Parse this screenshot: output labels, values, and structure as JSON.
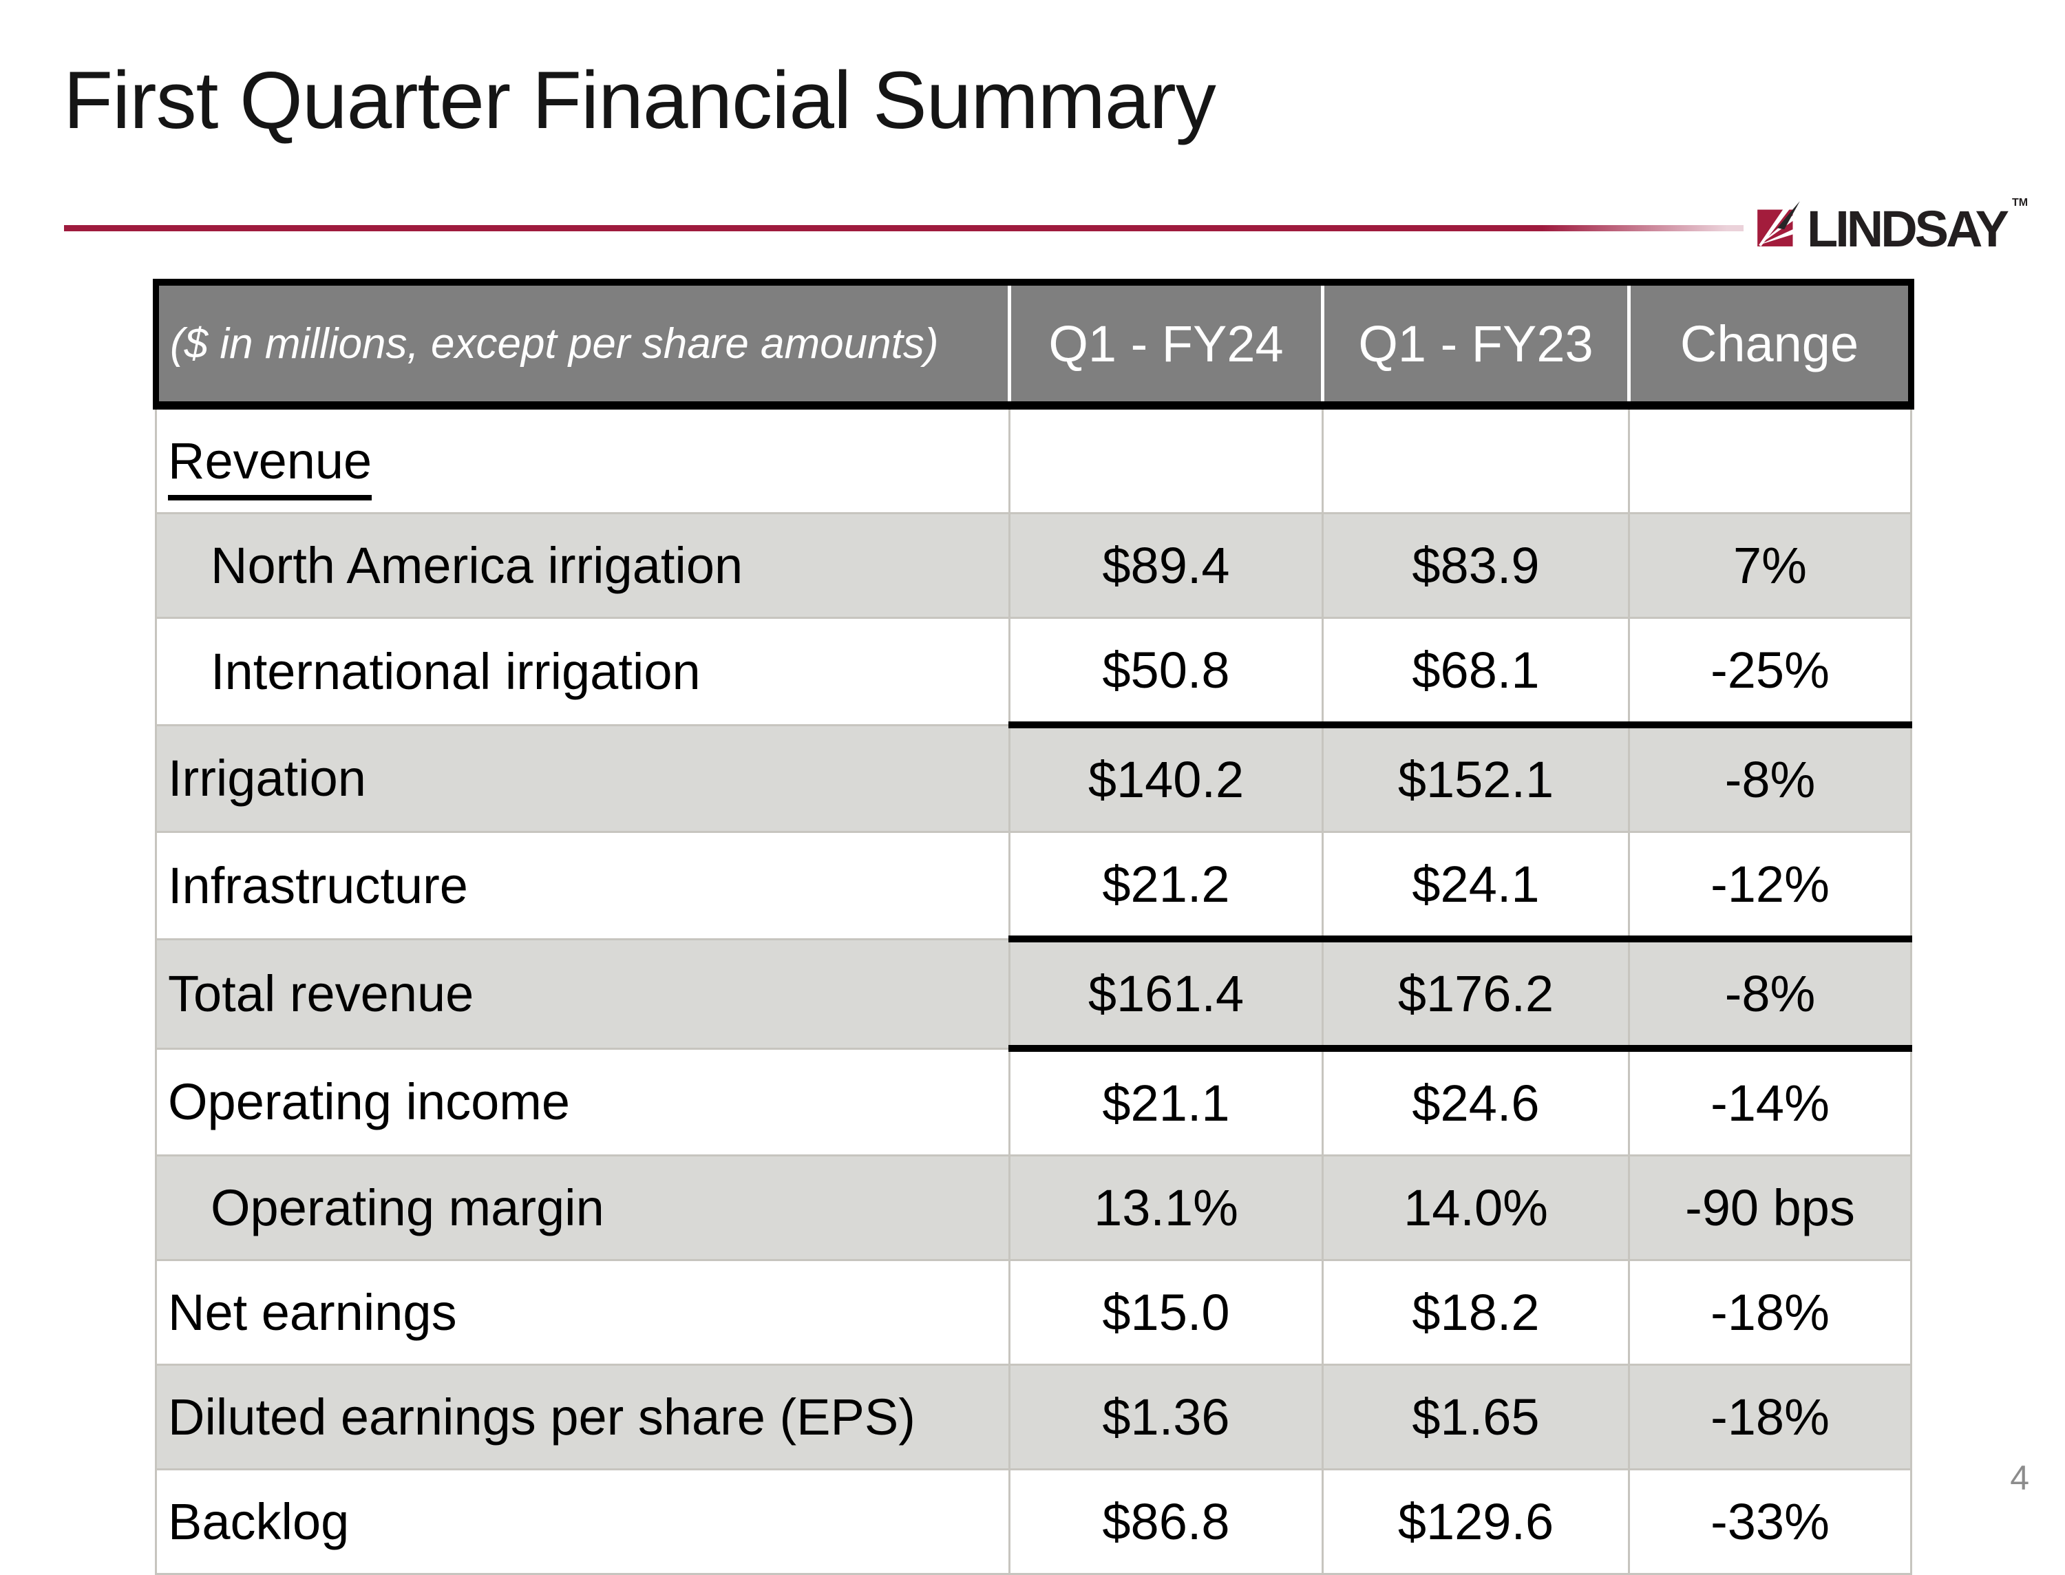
{
  "page": {
    "title": "First Quarter Financial Summary",
    "page_number": "4"
  },
  "logo": {
    "brand": "LINDSAY",
    "trademark": "TM",
    "mark_red": "#A31C3C",
    "text_color": "#231F20"
  },
  "accent_line_color": "#9E1B3E",
  "table": {
    "header": {
      "note": "($ in millions, except per share amounts)",
      "col_q1_fy24": "Q1 - FY24",
      "col_q1_fy23": "Q1 - FY23",
      "col_change": "Change",
      "bg": "#7F7F7F"
    },
    "shaded_row_bg": "#D9D9D6",
    "rows": [
      {
        "label": "Revenue",
        "q1_fy24": "",
        "q1_fy23": "",
        "change": "",
        "indent": false,
        "underline": true,
        "shaded": false,
        "section_end": false
      },
      {
        "label": "North America irrigation",
        "q1_fy24": "$89.4",
        "q1_fy23": "$83.9",
        "change": "7%",
        "indent": true,
        "underline": false,
        "shaded": true,
        "section_end": false
      },
      {
        "label": "International irrigation",
        "q1_fy24": "$50.8",
        "q1_fy23": "$68.1",
        "change": "-25%",
        "indent": true,
        "underline": false,
        "shaded": false,
        "section_end": true
      },
      {
        "label": "Irrigation",
        "q1_fy24": "$140.2",
        "q1_fy23": "$152.1",
        "change": "-8%",
        "indent": false,
        "underline": false,
        "shaded": true,
        "section_end": false
      },
      {
        "label": "Infrastructure",
        "q1_fy24": "$21.2",
        "q1_fy23": "$24.1",
        "change": "-12%",
        "indent": false,
        "underline": false,
        "shaded": false,
        "section_end": true
      },
      {
        "label": "Total revenue",
        "q1_fy24": "$161.4",
        "q1_fy23": "$176.2",
        "change": "-8%",
        "indent": false,
        "underline": false,
        "shaded": true,
        "section_end": true
      },
      {
        "label": "Operating income",
        "q1_fy24": "$21.1",
        "q1_fy23": "$24.6",
        "change": "-14%",
        "indent": false,
        "underline": false,
        "shaded": false,
        "section_end": false
      },
      {
        "label": "Operating margin",
        "q1_fy24": "13.1%",
        "q1_fy23": "14.0%",
        "change": "-90 bps",
        "indent": true,
        "underline": false,
        "shaded": true,
        "section_end": false
      },
      {
        "label": "Net earnings",
        "q1_fy24": "$15.0",
        "q1_fy23": "$18.2",
        "change": "-18%",
        "indent": false,
        "underline": false,
        "shaded": false,
        "section_end": false
      },
      {
        "label": "Diluted earnings per share (EPS)",
        "q1_fy24": "$1.36",
        "q1_fy23": "$1.65",
        "change": "-18%",
        "indent": false,
        "underline": false,
        "shaded": true,
        "section_end": false
      },
      {
        "label": "Backlog",
        "q1_fy24": "$86.8",
        "q1_fy23": "$129.6",
        "change": "-33%",
        "indent": false,
        "underline": false,
        "shaded": false,
        "section_end": false
      }
    ]
  }
}
